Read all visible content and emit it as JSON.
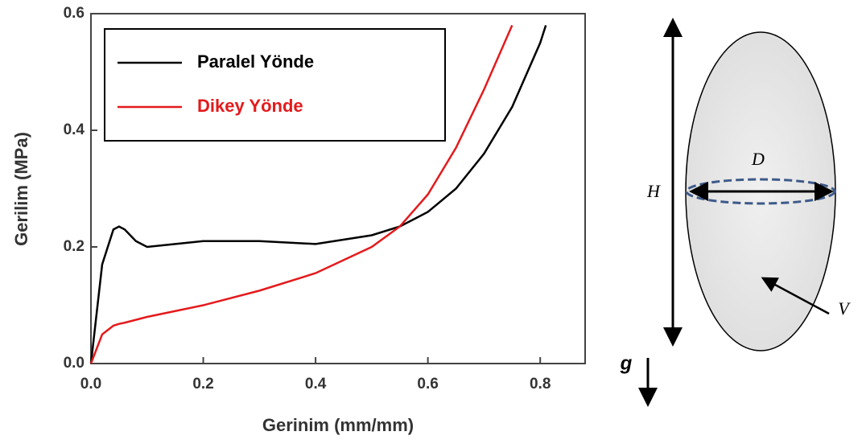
{
  "chart_data": {
    "type": "line",
    "x_label": "Gerinim (mm/mm)",
    "y_label": "Gerilim (MPa)",
    "x": [
      0,
      0.02,
      0.04,
      0.05,
      0.06,
      0.08,
      0.1,
      0.15,
      0.2,
      0.3,
      0.4,
      0.5,
      0.55,
      0.6,
      0.65,
      0.7,
      0.75,
      0.8,
      0.81
    ],
    "series": [
      {
        "name": "Paralel Yönde",
        "color": "#000000",
        "values": [
          0,
          0.17,
          0.23,
          0.235,
          0.23,
          0.21,
          0.2,
          0.205,
          0.21,
          0.21,
          0.205,
          0.22,
          0.235,
          0.26,
          0.3,
          0.36,
          0.44,
          0.55,
          0.58
        ]
      },
      {
        "name": "Dikey Yönde",
        "color": "#e41a1c",
        "values": [
          0,
          0.05,
          0.065,
          0.068,
          0.07,
          0.075,
          0.08,
          0.09,
          0.1,
          0.125,
          0.155,
          0.2,
          0.235,
          0.29,
          0.37,
          0.47,
          0.58,
          null,
          null
        ]
      }
    ],
    "xlim": [
      0,
      0.88
    ],
    "ylim": [
      0,
      0.6
    ],
    "xticks": [
      {
        "value": 0,
        "label": "0.0"
      },
      0.2,
      0.4,
      0.6,
      0.8
    ],
    "yticks": [
      {
        "value": 0,
        "label": "0.0"
      },
      0.2,
      0.4,
      0.6
    ],
    "legend": "upper-left"
  },
  "diagram": {
    "height_label": "H",
    "diameter_label": "D",
    "volume_label": "V",
    "gravity_label": "g"
  }
}
